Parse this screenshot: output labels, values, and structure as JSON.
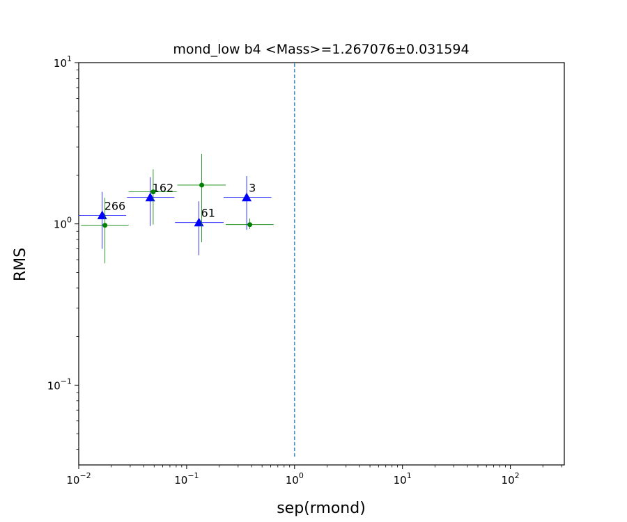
{
  "chart_data": {
    "type": "scatter",
    "title": "mond_low b4 <Mass>=1.267076±0.031594",
    "xlabel": "sep(rmond)",
    "ylabel": "RMS",
    "xscale": "log",
    "yscale": "log",
    "xlim": [
      0.01,
      316
    ],
    "ylim": [
      0.032,
      10
    ],
    "x_ticks": [
      {
        "base": "10",
        "exp": "−2",
        "value": 0.01
      },
      {
        "base": "10",
        "exp": "−1",
        "value": 0.1
      },
      {
        "base": "10",
        "exp": "0",
        "value": 1
      },
      {
        "base": "10",
        "exp": "1",
        "value": 10
      },
      {
        "base": "10",
        "exp": "2",
        "value": 100
      }
    ],
    "y_ticks": [
      {
        "base": "10",
        "exp": "−1",
        "value": 0.1
      },
      {
        "base": "10",
        "exp": "0",
        "value": 1
      },
      {
        "base": "10",
        "exp": "1",
        "value": 10
      }
    ],
    "grid": false,
    "vline": {
      "x": 1.0,
      "style": "dashed",
      "color": "#1f77b4",
      "ymin": 0.036,
      "ymax": 10
    },
    "series": [
      {
        "marker": "triangle",
        "color": "#0000ff",
        "points": [
          {
            "x": 0.0165,
            "y": 1.13,
            "xerr": [
              0.0101,
              0.0275
            ],
            "yerr": [
              0.7,
              1.58
            ],
            "label": "266"
          },
          {
            "x": 0.046,
            "y": 1.46,
            "xerr": [
              0.028,
              0.077
            ],
            "yerr": [
              0.97,
              1.95
            ],
            "label": "162"
          },
          {
            "x": 0.13,
            "y": 1.02,
            "xerr": [
              0.078,
              0.22
            ],
            "yerr": [
              0.64,
              1.38
            ],
            "label": "61"
          },
          {
            "x": 0.36,
            "y": 1.46,
            "xerr": [
              0.22,
              0.61
            ],
            "yerr": [
              0.92,
              1.98
            ],
            "label": "3"
          }
        ]
      },
      {
        "marker": "circle",
        "color": "#008000",
        "points": [
          {
            "x": 0.0175,
            "y": 0.98,
            "xerr": [
              0.0105,
              0.029
            ],
            "yerr": [
              0.57,
              1.45
            ]
          },
          {
            "x": 0.049,
            "y": 1.58,
            "xerr": [
              0.029,
              0.081
            ],
            "yerr": [
              0.99,
              2.18
            ]
          },
          {
            "x": 0.138,
            "y": 1.74,
            "xerr": [
              0.082,
              0.23
            ],
            "yerr": [
              0.77,
              2.72
            ]
          },
          {
            "x": 0.385,
            "y": 0.99,
            "xerr": [
              0.23,
              0.64
            ],
            "yerr": [
              0.93,
              1.08
            ]
          }
        ]
      }
    ]
  }
}
